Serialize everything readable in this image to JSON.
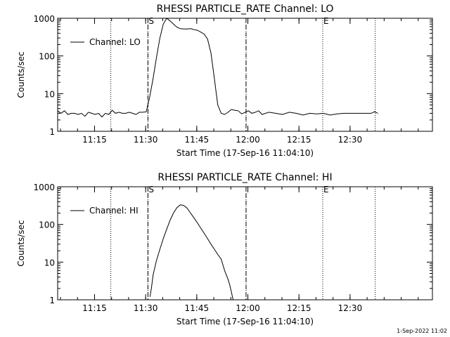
{
  "stamp": "1-Sep-2022 11:02",
  "chart_data": [
    {
      "type": "line",
      "title": "RHESSI PARTICLE_RATE Channel: LO",
      "xlabel": "Start Time (17-Sep-16 11:04:10)",
      "ylabel": "Counts/sec",
      "yscale": "log",
      "ylim": [
        1,
        1000
      ],
      "xlim_minutes_after_start": [
        0,
        110
      ],
      "x_tick_labels": [
        "11:15",
        "11:30",
        "11:45",
        "12:00",
        "12:15",
        "12:30"
      ],
      "x_tick_minutes": [
        10.83,
        25.83,
        40.83,
        55.83,
        70.83,
        85.83
      ],
      "y_tick_labels": [
        "1",
        "10",
        "100",
        "1000"
      ],
      "y_tick_values": [
        1,
        10,
        100,
        1000
      ],
      "markers": [
        {
          "label": "S",
          "minute": 26.5,
          "style": "dashed"
        },
        {
          "label": "",
          "minute": 55.3,
          "style": "dashed"
        },
        {
          "label": "E",
          "minute": 77.8,
          "style": "dotted"
        }
      ],
      "dotted_lines_minutes": [
        15.6,
        26.5,
        55.3,
        77.8,
        93.2
      ],
      "legend": {
        "label": "Channel: LO",
        "position": "top-left"
      },
      "series": [
        {
          "name": "Channel: LO",
          "x": [
            0,
            1,
            2,
            3,
            4,
            5,
            6,
            7,
            8,
            9,
            10,
            11,
            12,
            13,
            14,
            15,
            16,
            17,
            18,
            19,
            20,
            21,
            22,
            23,
            24,
            25,
            26,
            27,
            28,
            29,
            30,
            31,
            32,
            33,
            34,
            35,
            36,
            37,
            38,
            39,
            40,
            41,
            42,
            43,
            44,
            45,
            46,
            47,
            48,
            49,
            50,
            51,
            52,
            53,
            54,
            55,
            56,
            57,
            58,
            59,
            60,
            62,
            64,
            66,
            68,
            70,
            72,
            74,
            76,
            78,
            80,
            82,
            84,
            86,
            88,
            90,
            92,
            93,
            94
          ],
          "y": [
            3.5,
            3,
            3.5,
            2.8,
            3,
            3,
            2.8,
            3,
            2.5,
            3.2,
            3,
            2.8,
            3,
            2.4,
            3,
            2.8,
            3.6,
            3,
            3.2,
            3,
            3,
            3.2,
            3,
            2.8,
            3.2,
            3.2,
            3.3,
            8,
            25,
            90,
            300,
            700,
            1000,
            850,
            700,
            580,
            530,
            520,
            520,
            530,
            500,
            480,
            430,
            380,
            280,
            120,
            25,
            5,
            3,
            2.8,
            3.2,
            3.8,
            3.6,
            3.5,
            2.9,
            3.2,
            3.5,
            3,
            3.2,
            3.5,
            2.8,
            3.2,
            3,
            2.8,
            3.2,
            3,
            2.7,
            3,
            2.9,
            3,
            2.7,
            2.9,
            3,
            3,
            3,
            3,
            3,
            3.3,
            3
          ]
        }
      ]
    },
    {
      "type": "line",
      "title": "RHESSI PARTICLE_RATE Channel: HI",
      "xlabel": "Start Time (17-Sep-16 11:04:10)",
      "ylabel": "Counts/sec",
      "yscale": "log",
      "ylim": [
        1,
        1000
      ],
      "xlim_minutes_after_start": [
        0,
        110
      ],
      "x_tick_labels": [
        "11:15",
        "11:30",
        "11:45",
        "12:00",
        "12:15",
        "12:30"
      ],
      "x_tick_minutes": [
        10.83,
        25.83,
        40.83,
        55.83,
        70.83,
        85.83
      ],
      "y_tick_labels": [
        "1",
        "10",
        "100",
        "1000"
      ],
      "y_tick_values": [
        1,
        10,
        100,
        1000
      ],
      "markers": [
        {
          "label": "S",
          "minute": 26.5,
          "style": "dashed"
        },
        {
          "label": "",
          "minute": 55.3,
          "style": "dashed"
        },
        {
          "label": "E",
          "minute": 77.8,
          "style": "dotted"
        }
      ],
      "dotted_lines_minutes": [
        15.6,
        26.5,
        55.3,
        77.8,
        93.2
      ],
      "legend": {
        "label": "Channel: HI",
        "position": "top-left"
      },
      "series": [
        {
          "name": "Channel: HI",
          "x": [
            27.1,
            27.5,
            28,
            29,
            30,
            31,
            32,
            33,
            34,
            35,
            36,
            37,
            38,
            39,
            40,
            41,
            42,
            43,
            44,
            45,
            46,
            47,
            48,
            49,
            50,
            50.5,
            51,
            51.5
          ],
          "y": [
            1.2,
            2,
            4.5,
            11,
            22,
            42,
            75,
            130,
            200,
            280,
            330,
            320,
            270,
            200,
            150,
            110,
            80,
            58,
            42,
            30,
            22,
            16,
            12,
            6,
            3.5,
            2.5,
            1.6,
            1
          ]
        }
      ]
    }
  ]
}
